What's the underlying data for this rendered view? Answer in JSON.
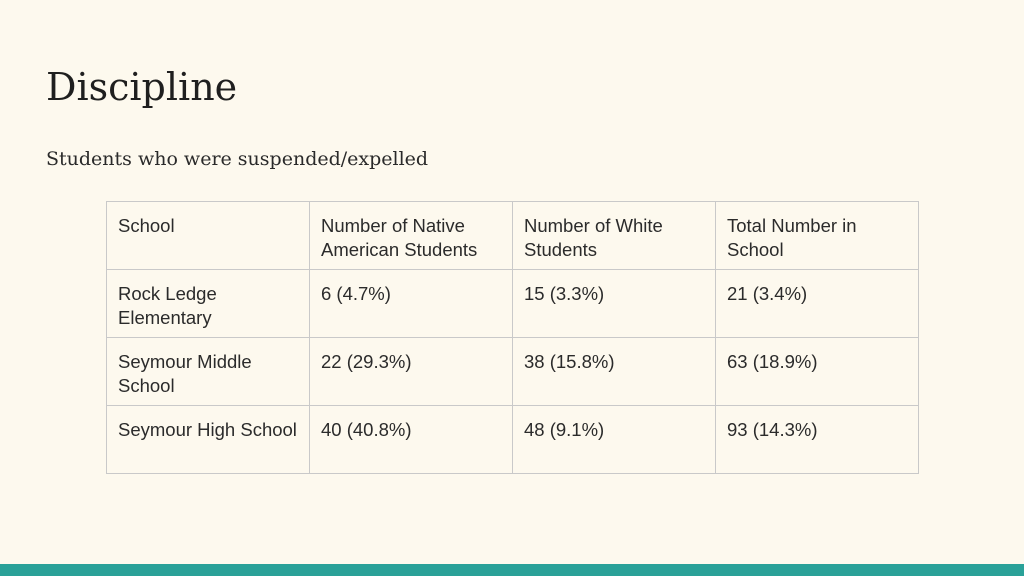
{
  "slide": {
    "title": "Discipline",
    "subtitle": "Students who were suspended/expelled",
    "accent_color": "#2aa198"
  },
  "table": {
    "headers": [
      "School",
      "Number of Native American Students",
      "Number of White Students",
      "Total Number in School"
    ],
    "rows": [
      [
        "Rock Ledge Elementary",
        "6 (4.7%)",
        "15 (3.3%)",
        "21 (3.4%)"
      ],
      [
        "Seymour Middle School",
        "22 (29.3%)",
        "38 (15.8%)",
        "63 (18.9%)"
      ],
      [
        "Seymour High School",
        "40 (40.8%)",
        "48 (9.1%)",
        "93 (14.3%)"
      ]
    ]
  }
}
